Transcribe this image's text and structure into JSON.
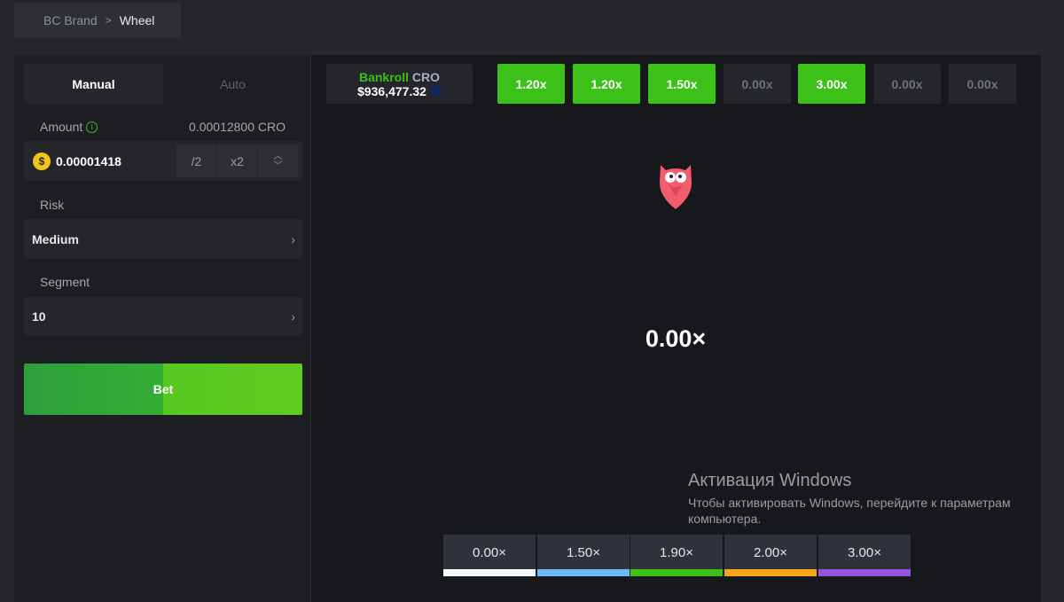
{
  "breadcrumb": {
    "parent": "BC Brand",
    "current": "Wheel"
  },
  "tabs": {
    "manual": "Manual",
    "auto": "Auto"
  },
  "amount": {
    "label": "Amount",
    "value_display": "0.00012800 CRO",
    "input_value": "0.00001418",
    "half": "/2",
    "double": "x2"
  },
  "risk": {
    "label": "Risk",
    "value": "Medium"
  },
  "segment": {
    "label": "Segment",
    "value": "10"
  },
  "bet_label": "Bet",
  "bankroll": {
    "label": "Bankroll",
    "currency": "CRO",
    "amount": "$936,477.32"
  },
  "history": [
    {
      "v": "1.20x",
      "win": true
    },
    {
      "v": "1.20x",
      "win": true
    },
    {
      "v": "1.50x",
      "win": true
    },
    {
      "v": "0.00x",
      "win": false
    },
    {
      "v": "3.00x",
      "win": true
    },
    {
      "v": "0.00x",
      "win": false
    },
    {
      "v": "0.00x",
      "win": false
    }
  ],
  "result": "0.00×",
  "legend": [
    {
      "v": "0.00×",
      "color": "#f6f9ff"
    },
    {
      "v": "1.50×",
      "color": "#6bbbfc"
    },
    {
      "v": "1.90×",
      "color": "#3bc117"
    },
    {
      "v": "2.00×",
      "color": "#f7a61c"
    },
    {
      "v": "3.00×",
      "color": "#9256dc"
    }
  ],
  "watermark": {
    "title": "Активация Windows",
    "text": "Чтобы активировать Windows, перейдите к параметрам компьютера."
  },
  "colors": {
    "accent": "#3bc117",
    "background": "#17181c"
  }
}
